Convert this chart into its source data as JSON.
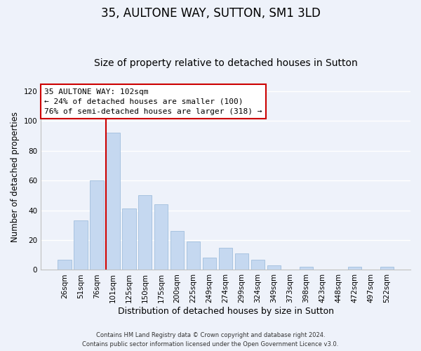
{
  "title": "35, AULTONE WAY, SUTTON, SM1 3LD",
  "subtitle": "Size of property relative to detached houses in Sutton",
  "xlabel": "Distribution of detached houses by size in Sutton",
  "ylabel": "Number of detached properties",
  "bar_labels": [
    "26sqm",
    "51sqm",
    "76sqm",
    "101sqm",
    "125sqm",
    "150sqm",
    "175sqm",
    "200sqm",
    "225sqm",
    "249sqm",
    "274sqm",
    "299sqm",
    "324sqm",
    "349sqm",
    "373sqm",
    "398sqm",
    "423sqm",
    "448sqm",
    "472sqm",
    "497sqm",
    "522sqm"
  ],
  "bar_values": [
    7,
    33,
    60,
    92,
    41,
    50,
    44,
    26,
    19,
    8,
    15,
    11,
    7,
    3,
    0,
    2,
    0,
    0,
    2,
    0,
    2
  ],
  "bar_color": "#c5d8f0",
  "bar_edge_color": "#a8c4e0",
  "highlight_bar_index": 3,
  "highlight_line_color": "#cc0000",
  "ylim": [
    0,
    125
  ],
  "yticks": [
    0,
    20,
    40,
    60,
    80,
    100,
    120
  ],
  "annotation_title": "35 AULTONE WAY: 102sqm",
  "annotation_line1": "← 24% of detached houses are smaller (100)",
  "annotation_line2": "76% of semi-detached houses are larger (318) →",
  "annotation_box_color": "#ffffff",
  "annotation_box_edge": "#cc0000",
  "footnote1": "Contains HM Land Registry data © Crown copyright and database right 2024.",
  "footnote2": "Contains public sector information licensed under the Open Government Licence v3.0.",
  "bg_color": "#eef2fa",
  "grid_color": "#ffffff",
  "title_fontsize": 12,
  "subtitle_fontsize": 10,
  "xlabel_fontsize": 9,
  "ylabel_fontsize": 8.5,
  "tick_fontsize": 7.5,
  "annotation_fontsize": 8,
  "footnote_fontsize": 6
}
